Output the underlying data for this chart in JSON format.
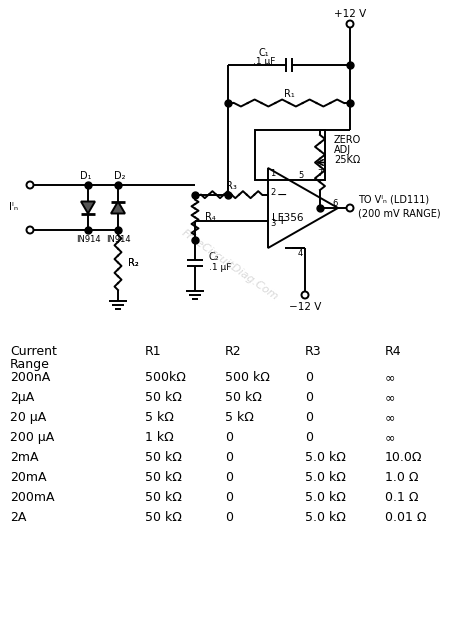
{
  "bg_color": "#ffffff",
  "line_color": "#000000",
  "text_color": "#000000",
  "watermark_color": "#bbbbbb",
  "table_rows": [
    [
      "200nA",
      "500kΩ",
      "500 kΩ",
      "0",
      "∞"
    ],
    [
      "2μA",
      "50 kΩ",
      "50 kΩ",
      "0",
      "∞"
    ],
    [
      "20 μA",
      "5 kΩ",
      "5 kΩ",
      "0",
      "∞"
    ],
    [
      "200 μA",
      "1 kΩ",
      "0",
      "0",
      "∞"
    ],
    [
      "2mA",
      "50 kΩ",
      "0",
      "5.0 kΩ",
      "10.0Ω"
    ],
    [
      "20mA",
      "50 kΩ",
      "0",
      "5.0 kΩ",
      "1.0 Ω"
    ],
    [
      "200mA",
      "50 kΩ",
      "0",
      "5.0 kΩ",
      "0.1 Ω"
    ],
    [
      "2A",
      "50 kΩ",
      "0",
      "5.0 kΩ",
      "0.01 Ω"
    ]
  ]
}
